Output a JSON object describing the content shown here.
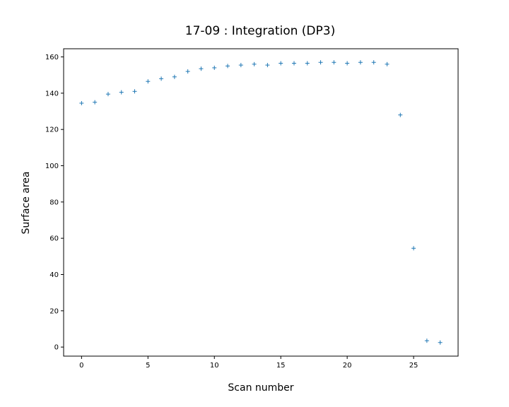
{
  "chart_data": {
    "type": "scatter",
    "title": "17-09 : Integration (DP3)",
    "xlabel": "Scan number",
    "ylabel": "Surface area",
    "xlim": [
      -1.35,
      28.35
    ],
    "ylim": [
      -5,
      164.5
    ],
    "xticks": [
      0,
      5,
      10,
      15,
      20,
      25
    ],
    "yticks": [
      0,
      20,
      40,
      60,
      80,
      100,
      120,
      140,
      160
    ],
    "grid": false,
    "marker": "+",
    "color": "#1f77b4",
    "series": [
      {
        "x": [
          0,
          1,
          2,
          3,
          4,
          5,
          6,
          7,
          8,
          9,
          10,
          11,
          12,
          13,
          14,
          15,
          16,
          17,
          18,
          19,
          20,
          21,
          22,
          23,
          24,
          25,
          26,
          27
        ],
        "y": [
          134.5,
          135,
          139.5,
          140.5,
          141,
          146.5,
          148,
          149,
          152,
          153.5,
          154,
          155,
          155.5,
          156,
          155.5,
          156.5,
          156.5,
          156.5,
          157,
          157,
          156.5,
          157,
          157,
          156,
          128,
          54.5,
          3.5,
          2.5
        ]
      }
    ]
  }
}
